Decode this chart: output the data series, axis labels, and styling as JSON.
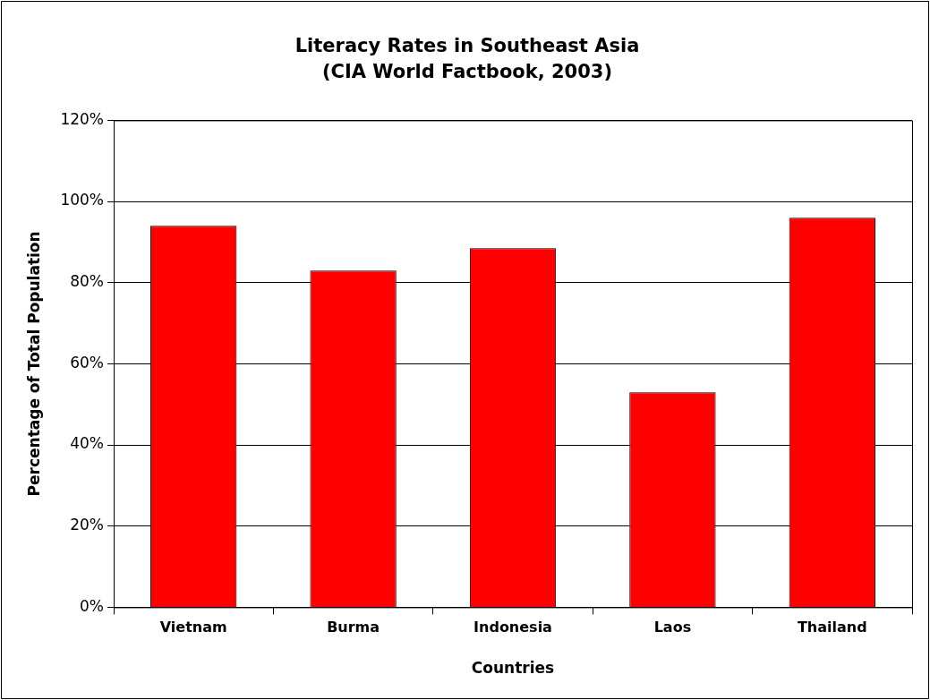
{
  "chart_data": {
    "type": "bar",
    "title": "Literacy Rates in Southeast Asia",
    "subtitle": "(CIA World Factbook, 2003)",
    "xlabel": "Countries",
    "ylabel": "Percentage of Total Population",
    "categories": [
      "Vietnam",
      "Burma",
      "Indonesia",
      "Laos",
      "Thailand"
    ],
    "values": [
      94,
      83,
      88.5,
      53,
      96
    ],
    "color": "#ff0000",
    "ylim": [
      0,
      120
    ],
    "yticks": [
      {
        "value": 0,
        "label": "0%"
      },
      {
        "value": 20,
        "label": "20%"
      },
      {
        "value": 40,
        "label": "40%"
      },
      {
        "value": 60,
        "label": "60%"
      },
      {
        "value": 80,
        "label": "80%"
      },
      {
        "value": 100,
        "label": "100%"
      },
      {
        "value": 120,
        "label": "120%"
      }
    ],
    "grid": "y",
    "legend": false
  }
}
